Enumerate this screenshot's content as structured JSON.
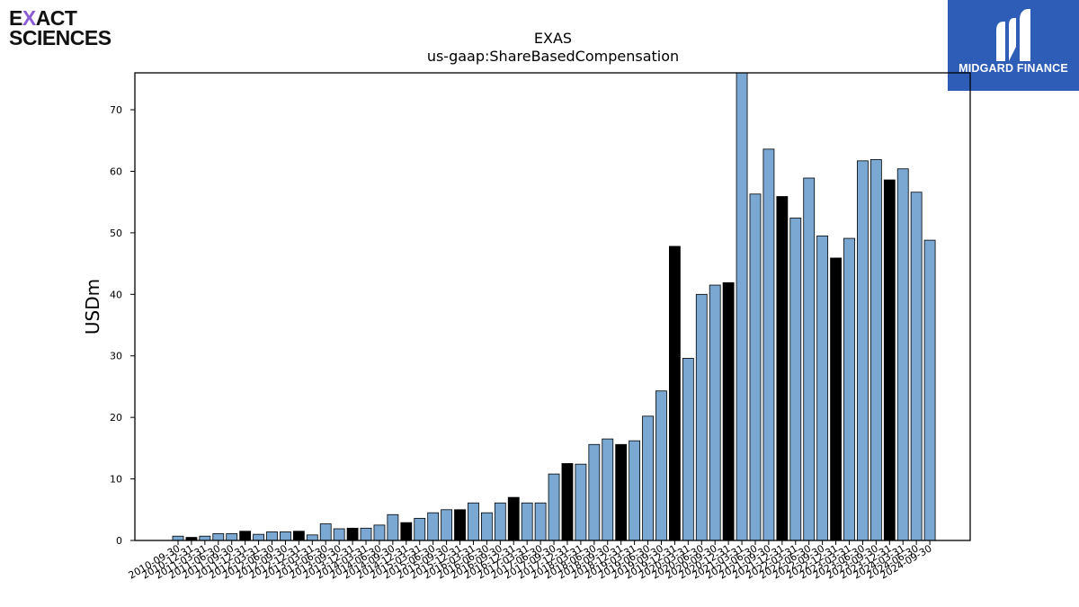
{
  "branding": {
    "left_logo_line1_pre": "E",
    "left_logo_line1_x": "X",
    "left_logo_line1_post": "ACT",
    "left_logo_line2": "SCIENCES",
    "right_logo_text": "MIDGARD FINANCE",
    "right_logo_icon": "midgard-m-icon",
    "right_logo_bg": "#2d5db6"
  },
  "colors": {
    "bar_default": "#7aa8d2",
    "bar_highlight": "#000000",
    "bar_edge": "#000000"
  },
  "chart_data": {
    "type": "bar",
    "title": "EXAS",
    "subtitle": "us-gaap:ShareBasedCompensation",
    "ylabel": "USDm",
    "xlabel": "",
    "ylim": [
      0,
      76
    ],
    "yticks": [
      0,
      10,
      20,
      30,
      40,
      50,
      60,
      70
    ],
    "grid": false,
    "categories": [
      "2010-09-30",
      "2010-12-31",
      "2011-03-31",
      "2011-06-30",
      "2011-09-30",
      "2011-12-31",
      "2012-03-31",
      "2012-06-30",
      "2012-09-30",
      "2012-12-31",
      "2013-03-31",
      "2013-06-30",
      "2013-09-30",
      "2013-12-31",
      "2014-03-31",
      "2014-06-30",
      "2014-09-30",
      "2014-12-31",
      "2015-03-31",
      "2015-06-30",
      "2015-09-30",
      "2015-12-31",
      "2016-03-31",
      "2016-06-30",
      "2016-09-30",
      "2016-12-31",
      "2017-03-31",
      "2017-06-30",
      "2017-09-30",
      "2017-12-31",
      "2018-03-31",
      "2018-06-30",
      "2018-09-30",
      "2018-12-31",
      "2019-03-31",
      "2019-06-30",
      "2019-09-30",
      "2019-12-31",
      "2020-03-31",
      "2020-06-30",
      "2020-09-30",
      "2020-12-31",
      "2021-03-31",
      "2021-06-30",
      "2021-09-30",
      "2021-12-31",
      "2022-03-31",
      "2022-06-30",
      "2022-09-30",
      "2022-12-31",
      "2023-03-31",
      "2023-06-30",
      "2023-09-30",
      "2023-12-31",
      "2024-03-31",
      "2024-06-30",
      "2024-09-30"
    ],
    "values": [
      0.7,
      0.5,
      0.7,
      1.1,
      1.1,
      1.5,
      1.0,
      1.4,
      1.4,
      1.5,
      0.9,
      2.7,
      1.9,
      2.0,
      2.0,
      2.5,
      4.2,
      2.9,
      3.6,
      4.5,
      5.0,
      5.0,
      6.1,
      4.5,
      6.1,
      7.0,
      6.1,
      6.1,
      10.8,
      12.5,
      12.4,
      15.6,
      16.5,
      15.6,
      16.2,
      20.2,
      24.3,
      47.8,
      29.6,
      40.0,
      41.5,
      41.9,
      76.5,
      56.3,
      63.6,
      55.9,
      52.4,
      58.9,
      49.5,
      45.9,
      49.1,
      61.7,
      61.9,
      58.6,
      60.4,
      56.6,
      48.8
    ],
    "highlight_indices": [
      1,
      5,
      9,
      13,
      17,
      21,
      25,
      29,
      33,
      37,
      41,
      45,
      49,
      53
    ]
  }
}
